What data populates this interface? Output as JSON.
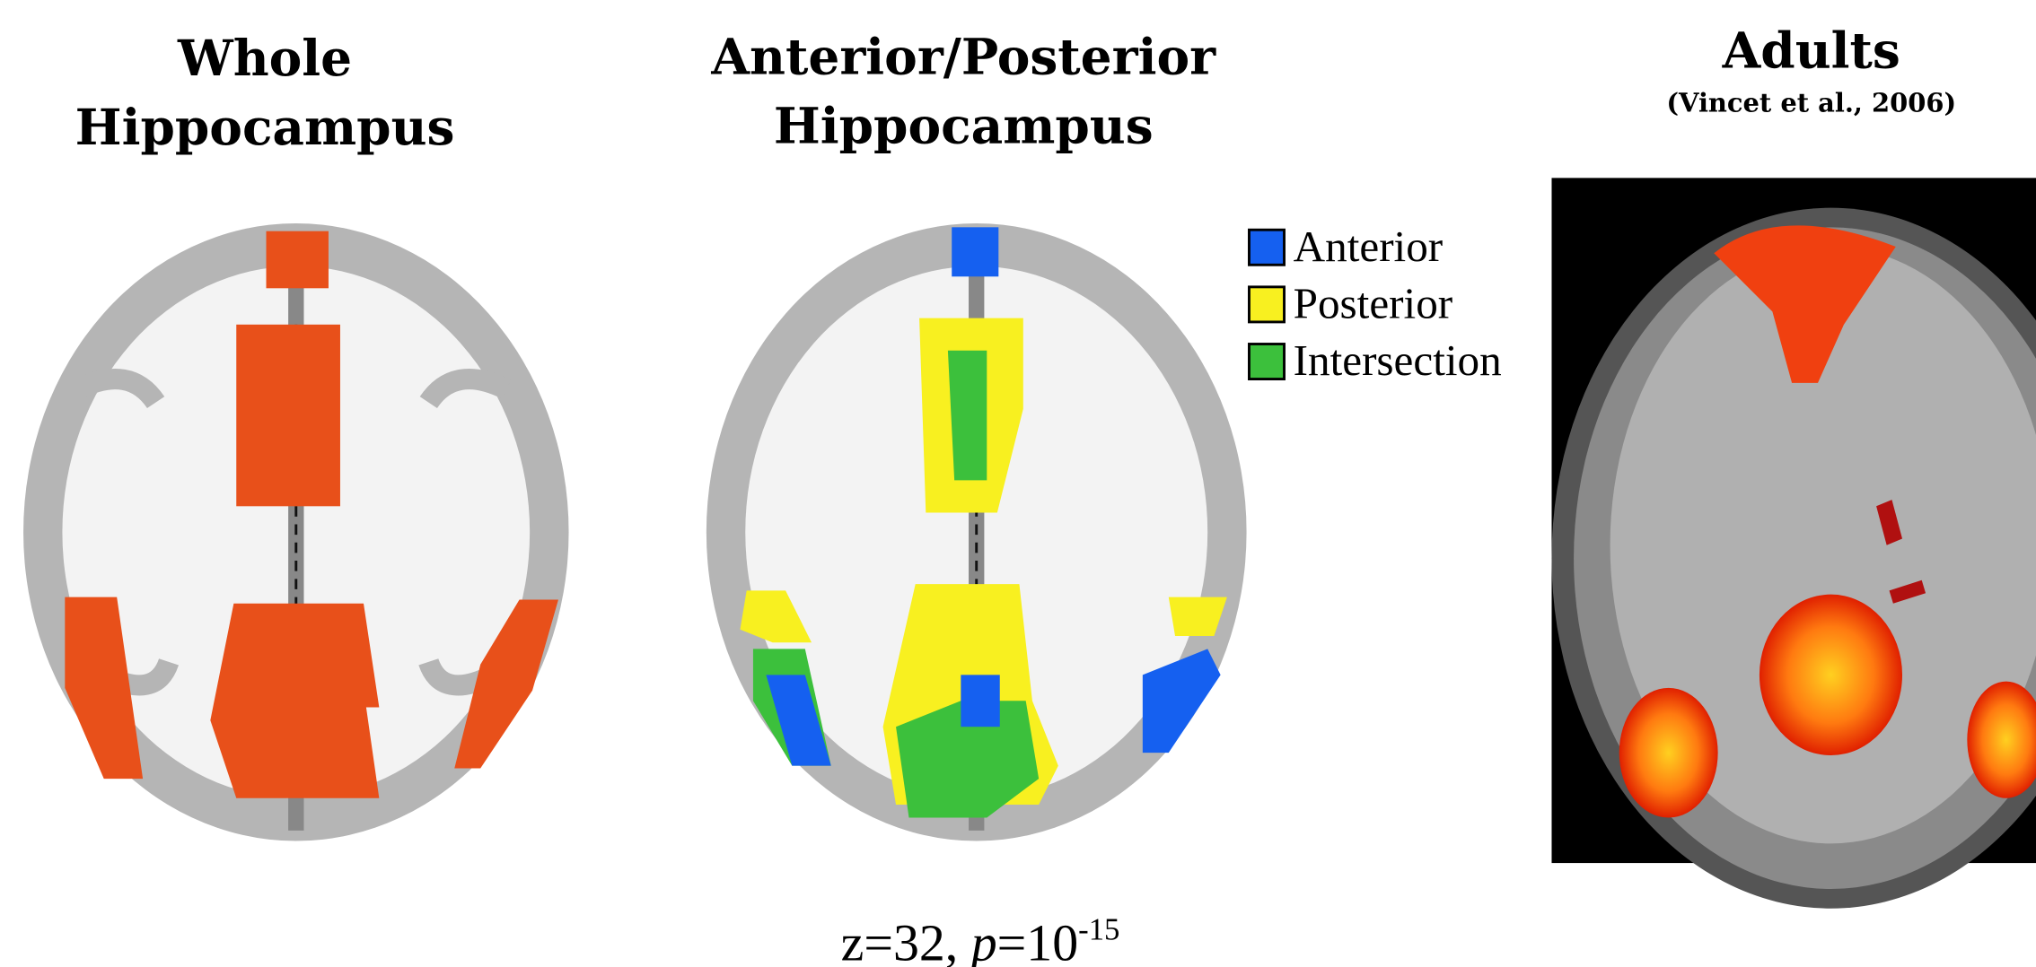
{
  "panels": {
    "whole": {
      "title_lines": [
        "Whole",
        "Hippocampus"
      ]
    },
    "anterior_posterior": {
      "title_lines": [
        "Anterior/Posterior",
        "Hippocampus"
      ],
      "legend": [
        {
          "label": "Anterior",
          "color": "#1560f0"
        },
        {
          "label": "Posterior",
          "color": "#f8f020"
        },
        {
          "label": "Intersection",
          "color": "#3cc03c"
        }
      ]
    },
    "adults": {
      "title": "Adults",
      "citation": "(Vincet et al., 2006)"
    }
  },
  "caption": {
    "z": "z=32,",
    "p_symbol": "p",
    "p_equals": "=10",
    "exponent": "-15"
  }
}
